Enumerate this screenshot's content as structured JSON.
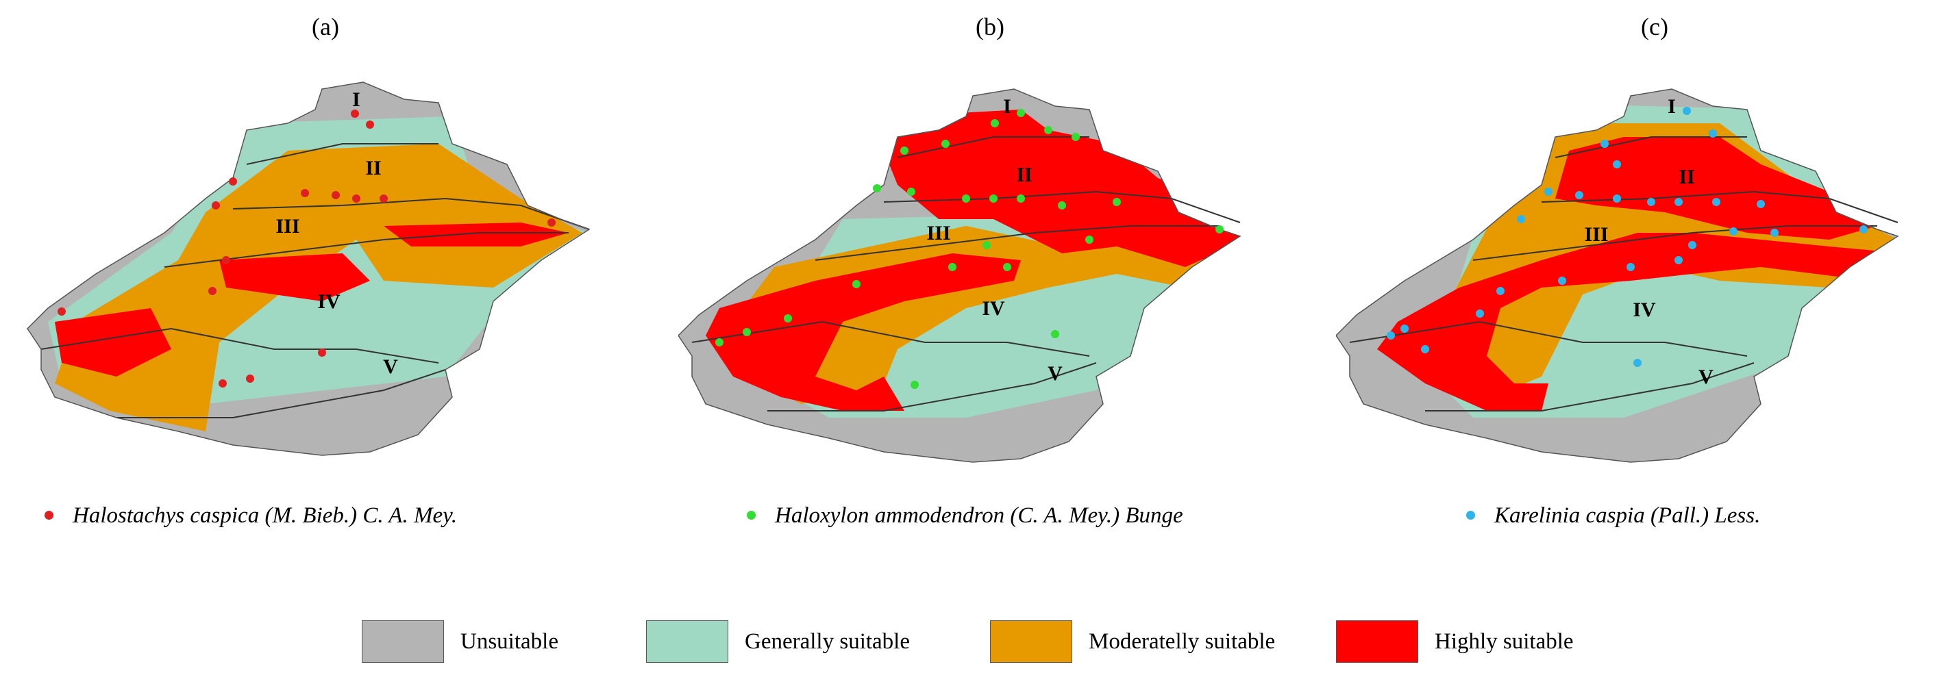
{
  "colors": {
    "unsuitable": "#b4b4b4",
    "generally": "#9fd9c3",
    "moderately": "#e69a00",
    "highly": "#fe0000",
    "boundary": "#333333"
  },
  "panels": [
    {
      "label": "(a)",
      "species": "Halostachys caspica (M. Bieb.) C. A. Mey.",
      "dot_color": "#e02020",
      "dominant": "moderately"
    },
    {
      "label": "(b)",
      "species": "Haloxylon ammodendron (C. A. Mey.) Bunge",
      "dot_color": "#33dd33",
      "dominant": "highly"
    },
    {
      "label": "(c)",
      "species": "Karelinia caspia (Pall.) Less.",
      "dot_color": "#2fb4ea",
      "dominant": "highly"
    }
  ],
  "regions": [
    "I",
    "II",
    "III",
    "IV",
    "V"
  ],
  "legend": [
    {
      "key": "unsuitable",
      "label": "Unsuitable"
    },
    {
      "key": "generally",
      "label": "Generally suitable"
    },
    {
      "key": "moderately",
      "label": "Moderatelly suitable"
    },
    {
      "key": "highly",
      "label": "Highly suitable"
    }
  ]
}
